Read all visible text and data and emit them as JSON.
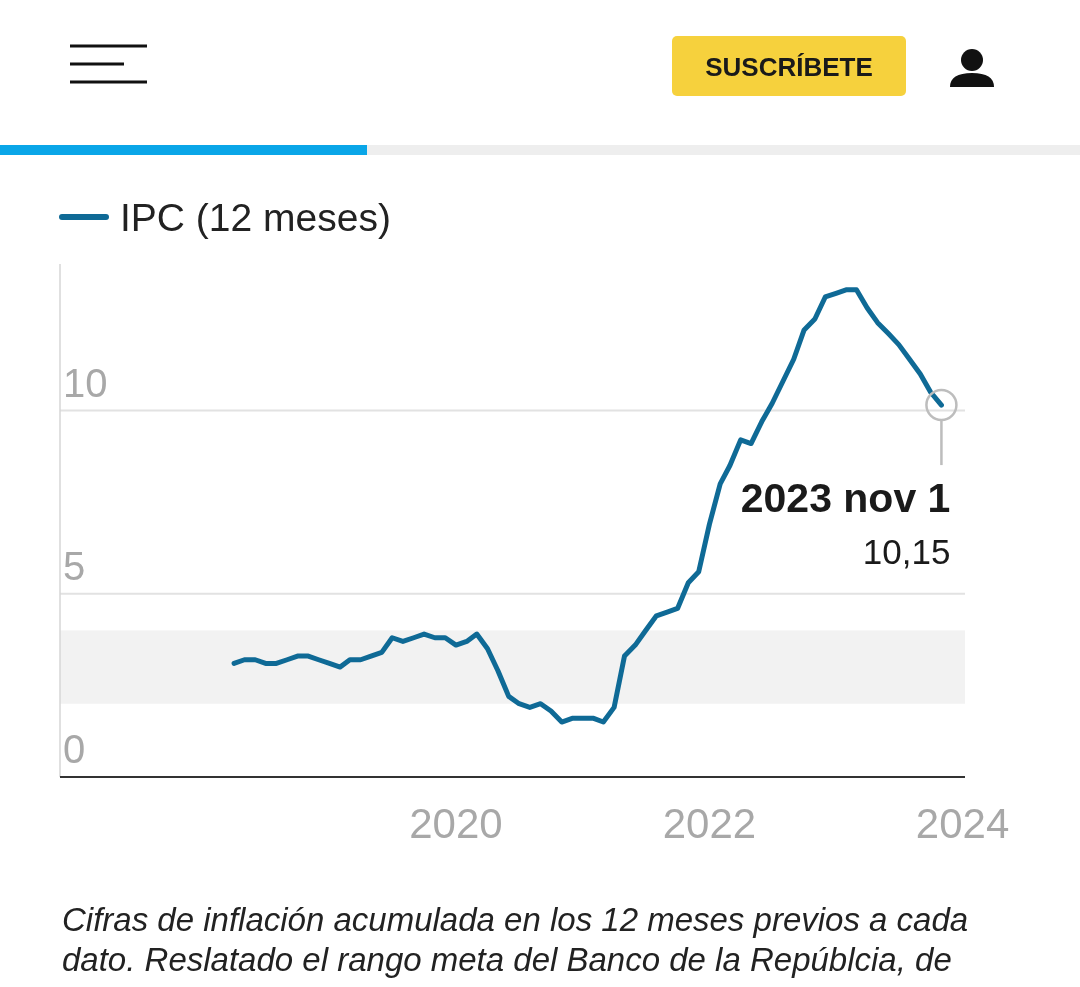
{
  "chart_data": {
    "type": "line",
    "x": [
      "2018-04",
      "2018-05",
      "2018-06",
      "2018-07",
      "2018-08",
      "2018-09",
      "2018-10",
      "2018-11",
      "2018-12",
      "2019-01",
      "2019-02",
      "2019-03",
      "2019-04",
      "2019-05",
      "2019-06",
      "2019-07",
      "2019-08",
      "2019-09",
      "2019-10",
      "2019-11",
      "2019-12",
      "2020-01",
      "2020-02",
      "2020-03",
      "2020-04",
      "2020-05",
      "2020-06",
      "2020-07",
      "2020-08",
      "2020-09",
      "2020-10",
      "2020-11",
      "2020-12",
      "2021-01",
      "2021-02",
      "2021-03",
      "2021-04",
      "2021-05",
      "2021-06",
      "2021-07",
      "2021-08",
      "2021-09",
      "2021-10",
      "2021-11",
      "2021-12",
      "2022-01",
      "2022-02",
      "2022-03",
      "2022-04",
      "2022-05",
      "2022-06",
      "2022-07",
      "2022-08",
      "2022-09",
      "2022-10",
      "2022-11",
      "2022-12",
      "2023-01",
      "2023-02",
      "2023-03",
      "2023-04",
      "2023-05",
      "2023-06",
      "2023-07",
      "2023-08",
      "2023-09",
      "2023-10",
      "2023-11"
    ],
    "series": [
      {
        "name": "IPC (12 meses)",
        "color": "#0f6a96",
        "values": [
          3.1,
          3.2,
          3.2,
          3.1,
          3.1,
          3.2,
          3.3,
          3.3,
          3.2,
          3.1,
          3.0,
          3.2,
          3.2,
          3.3,
          3.4,
          3.8,
          3.7,
          3.8,
          3.9,
          3.8,
          3.8,
          3.6,
          3.7,
          3.9,
          3.5,
          2.9,
          2.2,
          2.0,
          1.9,
          2.0,
          1.8,
          1.5,
          1.6,
          1.6,
          1.6,
          1.5,
          1.9,
          3.3,
          3.6,
          4.0,
          4.4,
          4.5,
          4.6,
          5.3,
          5.6,
          6.9,
          8.0,
          8.5,
          9.2,
          9.1,
          9.7,
          10.2,
          10.8,
          11.4,
          12.2,
          12.5,
          13.1,
          13.2,
          13.3,
          13.3,
          12.8,
          12.4,
          12.1,
          11.8,
          11.4,
          11.0,
          10.5,
          10.15
        ]
      }
    ],
    "xlim": [
      "2016-11-15",
      "2024-01-08"
    ],
    "xticks": [
      "2020",
      "2022",
      "2024"
    ],
    "ylim": [
      0,
      14
    ],
    "yticks": [
      0,
      5,
      10
    ],
    "grid": "y",
    "legend": "top left",
    "line_style": "solid",
    "bands": [
      {
        "axis": "y",
        "from": 2,
        "to": 4,
        "color": "#f2f2f2"
      }
    ],
    "annotations": [
      "SUSCRÍBETE",
      {
        "text": "2023 nov 1\n10,15",
        "x": "2023-11",
        "y": 10.15
      },
      "Cifras de inflación acumulada en los 12 meses previos a cada dato. Reslatado el rango meta del Banco de la Repúblcia, de"
    ]
  }
}
